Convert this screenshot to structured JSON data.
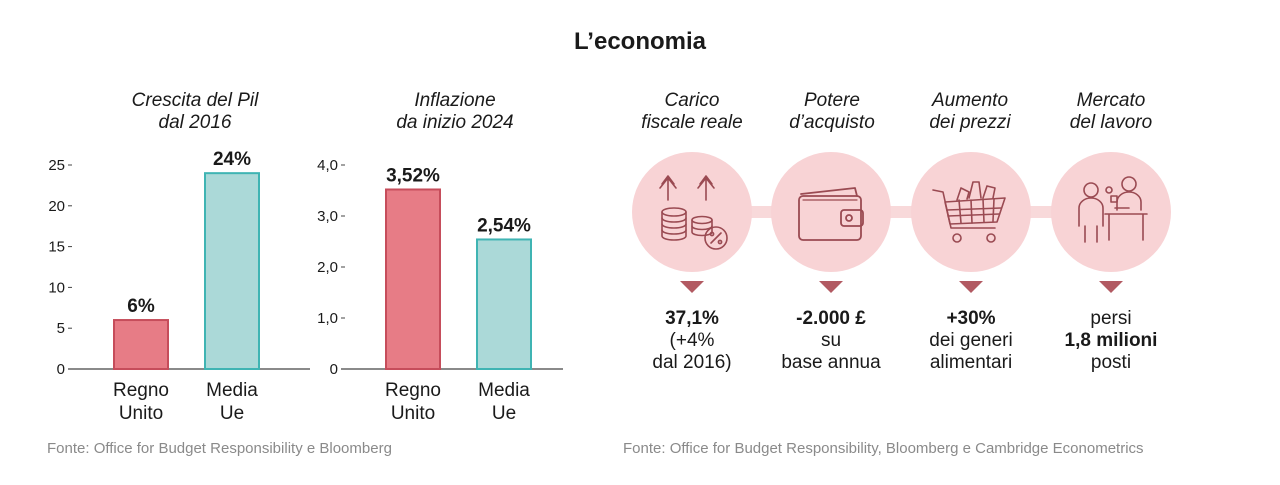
{
  "title": "L’economia",
  "charts": [
    {
      "title_lines": [
        "Crescita del Pil",
        "dal 2016"
      ],
      "chart_data": {
        "type": "bar",
        "title": "Crescita del Pil dal 2016",
        "categories": [
          [
            "Regno",
            "Unito"
          ],
          [
            "Media",
            "Ue"
          ]
        ],
        "values": [
          6,
          24
        ],
        "value_labels": [
          "6%",
          "24%"
        ],
        "yticks": [
          "0",
          "5",
          "10",
          "15",
          "20",
          "25"
        ],
        "ytick_values": [
          0,
          5,
          10,
          15,
          20,
          25
        ],
        "ylim": [
          0,
          25
        ],
        "grid": false
      }
    },
    {
      "title_lines": [
        "Inflazione",
        "da inizio 2024"
      ],
      "chart_data": {
        "type": "bar",
        "title": "Inflazione da inizio 2024",
        "categories": [
          [
            "Regno",
            "Unito"
          ],
          [
            "Media",
            "Ue"
          ]
        ],
        "values": [
          3.52,
          2.54
        ],
        "value_labels": [
          "3,52%",
          "2,54%"
        ],
        "yticks": [
          "0",
          "1,0",
          "2,0",
          "3,0",
          "4,0"
        ],
        "ytick_values": [
          0,
          1,
          2,
          3,
          4
        ],
        "ylim": [
          0,
          4
        ],
        "grid": false
      }
    }
  ],
  "colors": {
    "uk": "#e77c86",
    "uk_stroke": "#c64d5b",
    "eu": "#abd9d8",
    "eu_stroke": "#3fb4b3"
  },
  "source_left": "Fonte:  Office for Budget Responsibility e Bloomberg",
  "indicators": [
    {
      "title_lines": [
        "Carico",
        "fiscale reale"
      ],
      "icon": "tax-coins-icon",
      "text_lines": [
        {
          "t": "37,1%",
          "bold": true
        },
        {
          "t": "(+4%",
          "bold": false
        },
        {
          "t": "dal 2016)",
          "bold": false
        }
      ]
    },
    {
      "title_lines": [
        "Potere",
        "d’acquisto"
      ],
      "icon": "wallet-icon",
      "text_lines": [
        {
          "t": "-2.000 £",
          "bold": true
        },
        {
          "t": "su",
          "bold": false
        },
        {
          "t": "base annua",
          "bold": false
        }
      ]
    },
    {
      "title_lines": [
        "Aumento",
        "dei prezzi"
      ],
      "icon": "shopping-cart-icon",
      "text_lines": [
        {
          "t": "+30%",
          "bold": true
        },
        {
          "t": "dei generi",
          "bold": false
        },
        {
          "t": "alimentari",
          "bold": false
        }
      ]
    },
    {
      "title_lines": [
        "Mercato",
        "del lavoro"
      ],
      "icon": "job-interview-icon",
      "text_lines": [
        {
          "t": "persi",
          "bold": false
        },
        {
          "t": "1,8 milioni",
          "bold": true
        },
        {
          "t": "posti",
          "bold": false
        }
      ]
    }
  ],
  "source_right": "Fonte: Office for Budget Responsibility, Bloomberg e Cambridge Econometrics"
}
